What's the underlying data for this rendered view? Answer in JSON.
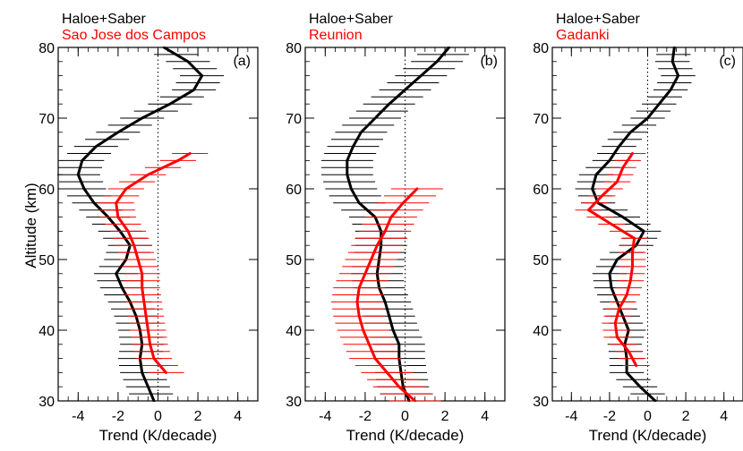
{
  "y_axis_label": "Altitude (km)",
  "chart_data": [
    {
      "type": "line",
      "panel_label": "(a)",
      "title_line1": "Haloe+Saber",
      "title_line2": "Sao Jose dos Campos",
      "xlabel": "Trend (K/decade)",
      "ylabel": "Altitude (km)",
      "xlim": [
        -5,
        5
      ],
      "ylim": [
        30,
        80
      ],
      "xticks": [
        -4,
        -2,
        0,
        2,
        4
      ],
      "yticks": [
        30,
        40,
        50,
        60,
        70,
        80
      ],
      "reference_line_x": 0,
      "series": [
        {
          "name": "Haloe+Saber",
          "color": "#000000",
          "points": [
            {
              "alt": 30,
              "trend": -0.2
            },
            {
              "alt": 32,
              "trend": -0.5
            },
            {
              "alt": 34,
              "trend": -0.8
            },
            {
              "alt": 36,
              "trend": -0.9
            },
            {
              "alt": 38,
              "trend": -0.8
            },
            {
              "alt": 40,
              "trend": -0.9
            },
            {
              "alt": 42,
              "trend": -1.1
            },
            {
              "alt": 44,
              "trend": -1.4
            },
            {
              "alt": 46,
              "trend": -1.8
            },
            {
              "alt": 48,
              "trend": -2.1
            },
            {
              "alt": 50,
              "trend": -1.6
            },
            {
              "alt": 52,
              "trend": -1.4
            },
            {
              "alt": 54,
              "trend": -1.9
            },
            {
              "alt": 56,
              "trend": -2.5
            },
            {
              "alt": 58,
              "trend": -3.2
            },
            {
              "alt": 60,
              "trend": -3.7
            },
            {
              "alt": 62,
              "trend": -4.0
            },
            {
              "alt": 64,
              "trend": -3.8
            },
            {
              "alt": 66,
              "trend": -3.1
            },
            {
              "alt": 68,
              "trend": -2.0
            },
            {
              "alt": 70,
              "trend": -0.8
            },
            {
              "alt": 72,
              "trend": 0.6
            },
            {
              "alt": 74,
              "trend": 1.8
            },
            {
              "alt": 76,
              "trend": 2.2
            },
            {
              "alt": 78,
              "trend": 1.5
            },
            {
              "alt": 80,
              "trend": 0.3
            }
          ],
          "error_halfwidth": 1.1
        },
        {
          "name": "Sao Jose dos Campos",
          "color": "#ff0000",
          "points": [
            {
              "alt": 34,
              "trend": 0.4
            },
            {
              "alt": 36,
              "trend": -0.2
            },
            {
              "alt": 38,
              "trend": -0.4
            },
            {
              "alt": 40,
              "trend": -0.5
            },
            {
              "alt": 42,
              "trend": -0.6
            },
            {
              "alt": 44,
              "trend": -0.7
            },
            {
              "alt": 46,
              "trend": -0.8
            },
            {
              "alt": 48,
              "trend": -0.8
            },
            {
              "alt": 50,
              "trend": -1.0
            },
            {
              "alt": 52,
              "trend": -1.2
            },
            {
              "alt": 54,
              "trend": -1.5
            },
            {
              "alt": 56,
              "trend": -2.0
            },
            {
              "alt": 58,
              "trend": -2.1
            },
            {
              "alt": 60,
              "trend": -1.6
            },
            {
              "alt": 62,
              "trend": -0.5
            },
            {
              "alt": 64,
              "trend": 1.0
            },
            {
              "alt": 65,
              "trend": 1.6
            }
          ],
          "error_halfwidth": 0.9
        }
      ]
    },
    {
      "type": "line",
      "panel_label": "(b)",
      "title_line1": "Haloe+Saber",
      "title_line2": "Reunion",
      "xlabel": "Trend (K/decade)",
      "ylabel": "",
      "xlim": [
        -5,
        5
      ],
      "ylim": [
        30,
        80
      ],
      "xticks": [
        -4,
        -2,
        0,
        2,
        4
      ],
      "yticks": [
        30,
        40,
        50,
        60,
        70,
        80
      ],
      "reference_line_x": 0,
      "series": [
        {
          "name": "Haloe+Saber",
          "color": "#000000",
          "points": [
            {
              "alt": 30,
              "trend": 0.2
            },
            {
              "alt": 32,
              "trend": -0.1
            },
            {
              "alt": 34,
              "trend": -0.2
            },
            {
              "alt": 36,
              "trend": -0.3
            },
            {
              "alt": 38,
              "trend": -0.3
            },
            {
              "alt": 40,
              "trend": -0.6
            },
            {
              "alt": 42,
              "trend": -0.8
            },
            {
              "alt": 44,
              "trend": -1.0
            },
            {
              "alt": 46,
              "trend": -1.3
            },
            {
              "alt": 48,
              "trend": -1.4
            },
            {
              "alt": 50,
              "trend": -1.3
            },
            {
              "alt": 52,
              "trend": -1.2
            },
            {
              "alt": 54,
              "trend": -1.2
            },
            {
              "alt": 56,
              "trend": -1.5
            },
            {
              "alt": 58,
              "trend": -2.3
            },
            {
              "alt": 60,
              "trend": -2.7
            },
            {
              "alt": 62,
              "trend": -2.9
            },
            {
              "alt": 64,
              "trend": -2.9
            },
            {
              "alt": 66,
              "trend": -2.6
            },
            {
              "alt": 68,
              "trend": -2.2
            },
            {
              "alt": 70,
              "trend": -1.5
            },
            {
              "alt": 72,
              "trend": -0.8
            },
            {
              "alt": 74,
              "trend": 0.0
            },
            {
              "alt": 76,
              "trend": 0.8
            },
            {
              "alt": 78,
              "trend": 1.6
            },
            {
              "alt": 80,
              "trend": 2.2
            }
          ],
          "error_halfwidth": 1.3
        },
        {
          "name": "Reunion",
          "color": "#ff0000",
          "points": [
            {
              "alt": 30,
              "trend": 0.5
            },
            {
              "alt": 32,
              "trend": -0.3
            },
            {
              "alt": 34,
              "trend": -0.9
            },
            {
              "alt": 36,
              "trend": -1.5
            },
            {
              "alt": 38,
              "trend": -1.8
            },
            {
              "alt": 40,
              "trend": -2.1
            },
            {
              "alt": 42,
              "trend": -2.3
            },
            {
              "alt": 44,
              "trend": -2.4
            },
            {
              "alt": 46,
              "trend": -2.3
            },
            {
              "alt": 48,
              "trend": -2.0
            },
            {
              "alt": 50,
              "trend": -1.7
            },
            {
              "alt": 52,
              "trend": -1.4
            },
            {
              "alt": 54,
              "trend": -1.0
            },
            {
              "alt": 56,
              "trend": -0.7
            },
            {
              "alt": 58,
              "trend": -0.1
            },
            {
              "alt": 60,
              "trend": 0.6
            }
          ],
          "error_halfwidth": 1.3
        }
      ]
    },
    {
      "type": "line",
      "panel_label": "(c)",
      "title_line1": "Haloe+Saber",
      "title_line2": "Gadanki",
      "xlabel": "Trend (K/decade)",
      "ylabel": "",
      "xlim": [
        -5,
        5
      ],
      "ylim": [
        30,
        80
      ],
      "xticks": [
        -4,
        -2,
        0,
        2,
        4
      ],
      "yticks": [
        30,
        40,
        50,
        60,
        70,
        80
      ],
      "reference_line_x": 0,
      "series": [
        {
          "name": "Haloe+Saber",
          "color": "#000000",
          "points": [
            {
              "alt": 30,
              "trend": 0.4
            },
            {
              "alt": 32,
              "trend": -0.4
            },
            {
              "alt": 34,
              "trend": -1.1
            },
            {
              "alt": 36,
              "trend": -1.1
            },
            {
              "alt": 38,
              "trend": -1.2
            },
            {
              "alt": 40,
              "trend": -1.0
            },
            {
              "alt": 42,
              "trend": -1.3
            },
            {
              "alt": 44,
              "trend": -1.6
            },
            {
              "alt": 46,
              "trend": -1.9
            },
            {
              "alt": 48,
              "trend": -2.0
            },
            {
              "alt": 50,
              "trend": -1.6
            },
            {
              "alt": 52,
              "trend": -0.6
            },
            {
              "alt": 54,
              "trend": -0.2
            },
            {
              "alt": 56,
              "trend": -1.3
            },
            {
              "alt": 58,
              "trend": -2.6
            },
            {
              "alt": 60,
              "trend": -2.9
            },
            {
              "alt": 62,
              "trend": -2.7
            },
            {
              "alt": 64,
              "trend": -2.0
            },
            {
              "alt": 66,
              "trend": -1.5
            },
            {
              "alt": 68,
              "trend": -0.9
            },
            {
              "alt": 70,
              "trend": 0.0
            },
            {
              "alt": 72,
              "trend": 0.6
            },
            {
              "alt": 74,
              "trend": 1.2
            },
            {
              "alt": 76,
              "trend": 1.6
            },
            {
              "alt": 78,
              "trend": 1.3
            },
            {
              "alt": 80,
              "trend": 1.4
            }
          ],
          "error_halfwidth": 0.9
        },
        {
          "name": "Gadanki",
          "color": "#ff0000",
          "points": [
            {
              "alt": 35,
              "trend": -0.6
            },
            {
              "alt": 37,
              "trend": -1.0
            },
            {
              "alt": 39,
              "trend": -1.6
            },
            {
              "alt": 41,
              "trend": -1.7
            },
            {
              "alt": 43,
              "trend": -1.5
            },
            {
              "alt": 45,
              "trend": -1.1
            },
            {
              "alt": 47,
              "trend": -0.9
            },
            {
              "alt": 49,
              "trend": -0.8
            },
            {
              "alt": 51,
              "trend": -0.8
            },
            {
              "alt": 53,
              "trend": -0.7
            },
            {
              "alt": 55,
              "trend": -1.9
            },
            {
              "alt": 57,
              "trend": -3.1
            },
            {
              "alt": 59,
              "trend": -2.4
            },
            {
              "alt": 61,
              "trend": -1.6
            },
            {
              "alt": 63,
              "trend": -1.3
            },
            {
              "alt": 65,
              "trend": -0.8
            }
          ],
          "error_halfwidth": 0.7
        }
      ]
    }
  ]
}
